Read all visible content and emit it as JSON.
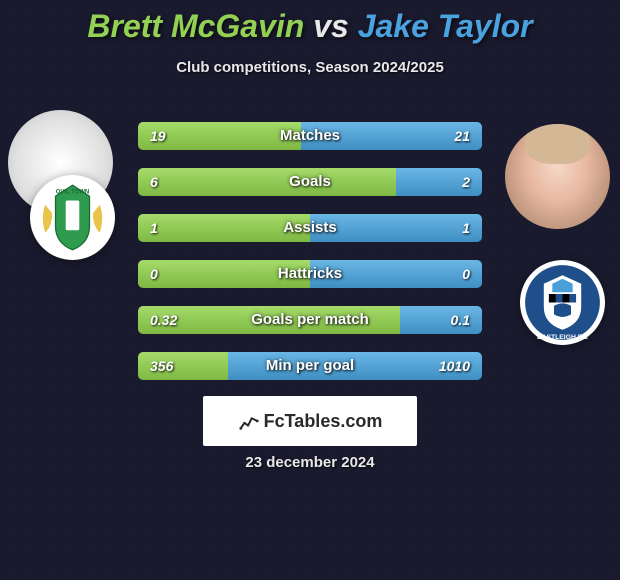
{
  "title": {
    "player1": "Brett McGavin",
    "vs": "vs",
    "player2": "Jake Taylor"
  },
  "subtitle": "Club competitions, Season 2024/2025",
  "colors": {
    "p1_bar_top": "#a5db6a",
    "p1_bar_bottom": "#7eb842",
    "p2_bar_top": "#6ab7e6",
    "p2_bar_bottom": "#3f8fc2",
    "p1_text": "#93d154",
    "p2_text": "#4aa3df",
    "background": "#1a1a2e"
  },
  "stats": [
    {
      "label": "Matches",
      "v1": "19",
      "v2": "21",
      "w1": 47.5,
      "w2": 52.5
    },
    {
      "label": "Goals",
      "v1": "6",
      "v2": "2",
      "w1": 75.0,
      "w2": 25.0
    },
    {
      "label": "Assists",
      "v1": "1",
      "v2": "1",
      "w1": 50.0,
      "w2": 50.0
    },
    {
      "label": "Hattricks",
      "v1": "0",
      "v2": "0",
      "w1": 50.0,
      "w2": 50.0
    },
    {
      "label": "Goals per match",
      "v1": "0.32",
      "v2": "0.1",
      "w1": 76.2,
      "w2": 23.8
    },
    {
      "label": "Min per goal",
      "v1": "356",
      "v2": "1010",
      "w1": 26.1,
      "w2": 73.9
    }
  ],
  "logo_text": "FcTables.com",
  "footer_date": "23 december 2024",
  "badges": {
    "left_club": "Yeovil Town",
    "right_club": "Eastleigh FC"
  }
}
